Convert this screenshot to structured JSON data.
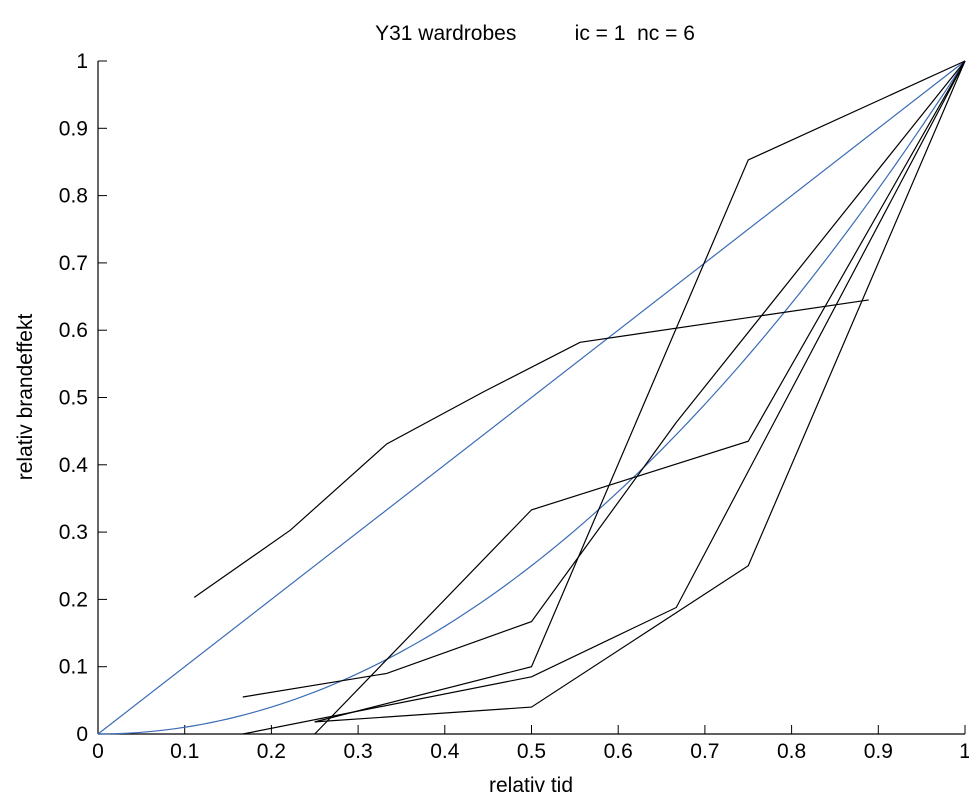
{
  "chart_data": {
    "type": "line",
    "title": "Y31 wardrobes          ic = 1  nc = 6",
    "xlabel": "relativ tid",
    "ylabel": "relativ brandeffekt",
    "xlim": [
      0,
      1
    ],
    "ylim": [
      0,
      1
    ],
    "xticks": [
      0,
      0.1,
      0.2,
      0.3,
      0.4,
      0.5,
      0.6,
      0.7,
      0.8,
      0.9,
      1
    ],
    "xtick_labels": [
      "0",
      "0.1",
      "0.2",
      "0.3",
      "0.4",
      "0.5",
      "0.6",
      "0.7",
      "0.8",
      "0.9",
      "1"
    ],
    "yticks": [
      0,
      0.1,
      0.2,
      0.3,
      0.4,
      0.5,
      0.6,
      0.7,
      0.8,
      0.9,
      1
    ],
    "ytick_labels": [
      "0",
      "0.1",
      "0.2",
      "0.3",
      "0.4",
      "0.5",
      "0.6",
      "0.7",
      "0.8",
      "0.9",
      "1"
    ],
    "grid": false,
    "colors": {
      "reference": "#3a6bb5",
      "data": "#000000"
    },
    "reference_curves": [
      {
        "shape": "linear",
        "x": [
          0,
          1
        ],
        "y": [
          0,
          1
        ]
      },
      {
        "shape": "quadratic",
        "x": [
          0,
          0.1,
          0.2,
          0.3,
          0.4,
          0.5,
          0.6,
          0.7,
          0.8,
          0.9,
          1
        ],
        "y": [
          0,
          0.01,
          0.04,
          0.09,
          0.16,
          0.25,
          0.36,
          0.49,
          0.64,
          0.81,
          1
        ]
      }
    ],
    "series": [
      {
        "x": [
          0.111,
          0.222,
          0.333,
          0.444,
          0.556,
          0.889
        ],
        "y": [
          0.203,
          0.303,
          0.431,
          0.508,
          0.582,
          0.645
        ]
      },
      {
        "x": [
          0.167,
          0.333,
          0.5,
          0.667,
          1.0
        ],
        "y": [
          0.055,
          0.09,
          0.167,
          0.463,
          1.0
        ]
      },
      {
        "x": [
          0.25,
          0.5,
          0.75,
          1.0
        ],
        "y": [
          0.0,
          0.333,
          0.435,
          1.0
        ]
      },
      {
        "x": [
          0.25,
          0.5,
          0.75,
          1.0
        ],
        "y": [
          0.018,
          0.1,
          0.853,
          1.0
        ]
      },
      {
        "x": [
          0.167,
          0.5,
          0.667,
          1.0
        ],
        "y": [
          0.0,
          0.085,
          0.188,
          1.0
        ]
      },
      {
        "x": [
          0.25,
          0.5,
          0.75,
          1.0
        ],
        "y": [
          0.018,
          0.04,
          0.25,
          1.0
        ]
      }
    ]
  }
}
